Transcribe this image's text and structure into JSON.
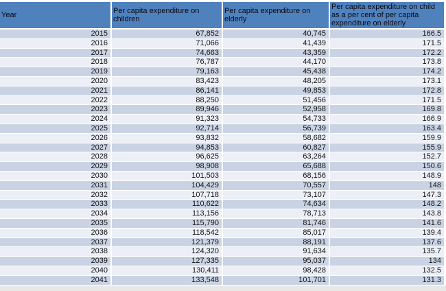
{
  "colors": {
    "header_bg": "#4F81BD",
    "header_text": "#0a0a14",
    "body_text": "#141414",
    "row_dark": "#C9D3E3",
    "row_light": "#ECEFF6",
    "bottom_strip": "#E8E8E6"
  },
  "table": {
    "columns": [
      "Year",
      "Per capita expenditure on children",
      "Per capita expenditure on elderly",
      "Per capita expenditure on child as a per cent of per capita expenditure on elderly"
    ],
    "rows": [
      [
        "2015",
        "67,852",
        "40,745",
        "166.5"
      ],
      [
        "2016",
        "71,066",
        "41,439",
        "171.5"
      ],
      [
        "2017",
        "74,663",
        "43,359",
        "172.2"
      ],
      [
        "2018",
        "76,787",
        "44,170",
        "173.8"
      ],
      [
        "2019",
        "79,163",
        "45,438",
        "174.2"
      ],
      [
        "2020",
        "83,423",
        "48,205",
        "173.1"
      ],
      [
        "2021",
        "86,141",
        "49,853",
        "172.8"
      ],
      [
        "2022",
        "88,250",
        "51,456",
        "171.5"
      ],
      [
        "2023",
        "89,946",
        "52,958",
        "169.8"
      ],
      [
        "2024",
        "91,323",
        "54,733",
        "166.9"
      ],
      [
        "2025",
        "92,714",
        "56,739",
        "163.4"
      ],
      [
        "2026",
        "93,832",
        "58,682",
        "159.9"
      ],
      [
        "2027",
        "94,853",
        "60,827",
        "155.9"
      ],
      [
        "2028",
        "96,625",
        "63,264",
        "152.7"
      ],
      [
        "2029",
        "98,908",
        "65,688",
        "150.6"
      ],
      [
        "2030",
        "101,503",
        "68,156",
        "148.9"
      ],
      [
        "2031",
        "104,429",
        "70,557",
        "148"
      ],
      [
        "2032",
        "107,718",
        "73,107",
        "147.3"
      ],
      [
        "2033",
        "110,622",
        "74,634",
        "148.2"
      ],
      [
        "2034",
        "113,156",
        "78,713",
        "143.8"
      ],
      [
        "2035",
        "115,790",
        "81,746",
        "141.6"
      ],
      [
        "2036",
        "118,542",
        "85,017",
        "139.4"
      ],
      [
        "2037",
        "121,379",
        "88,191",
        "137.6"
      ],
      [
        "2038",
        "124,320",
        "91,634",
        "135.7"
      ],
      [
        "2039",
        "127,335",
        "95,037",
        "134"
      ],
      [
        "2040",
        "130,411",
        "98,428",
        "132.5"
      ],
      [
        "2041",
        "133,548",
        "101,701",
        "131.3"
      ]
    ]
  },
  "chart_data": {
    "type": "table",
    "title": "",
    "columns": [
      "Year",
      "Per capita expenditure on children",
      "Per capita expenditure on elderly",
      "Per capita expenditure on child as a per cent of per capita expenditure on elderly"
    ],
    "rows": [
      [
        2015,
        67852,
        40745,
        166.5
      ],
      [
        2016,
        71066,
        41439,
        171.5
      ],
      [
        2017,
        74663,
        43359,
        172.2
      ],
      [
        2018,
        76787,
        44170,
        173.8
      ],
      [
        2019,
        79163,
        45438,
        174.2
      ],
      [
        2020,
        83423,
        48205,
        173.1
      ],
      [
        2021,
        86141,
        49853,
        172.8
      ],
      [
        2022,
        88250,
        51456,
        171.5
      ],
      [
        2023,
        89946,
        52958,
        169.8
      ],
      [
        2024,
        91323,
        54733,
        166.9
      ],
      [
        2025,
        92714,
        56739,
        163.4
      ],
      [
        2026,
        93832,
        58682,
        159.9
      ],
      [
        2027,
        94853,
        60827,
        155.9
      ],
      [
        2028,
        96625,
        63264,
        152.7
      ],
      [
        2029,
        98908,
        65688,
        150.6
      ],
      [
        2030,
        101503,
        68156,
        148.9
      ],
      [
        2031,
        104429,
        70557,
        148
      ],
      [
        2032,
        107718,
        73107,
        147.3
      ],
      [
        2033,
        110622,
        74634,
        148.2
      ],
      [
        2034,
        113156,
        78713,
        143.8
      ],
      [
        2035,
        115790,
        81746,
        141.6
      ],
      [
        2036,
        118542,
        85017,
        139.4
      ],
      [
        2037,
        121379,
        88191,
        137.6
      ],
      [
        2038,
        124320,
        91634,
        135.7
      ],
      [
        2039,
        127335,
        95037,
        134
      ],
      [
        2040,
        130411,
        98428,
        132.5
      ],
      [
        2041,
        133548,
        101701,
        131.3
      ]
    ]
  }
}
